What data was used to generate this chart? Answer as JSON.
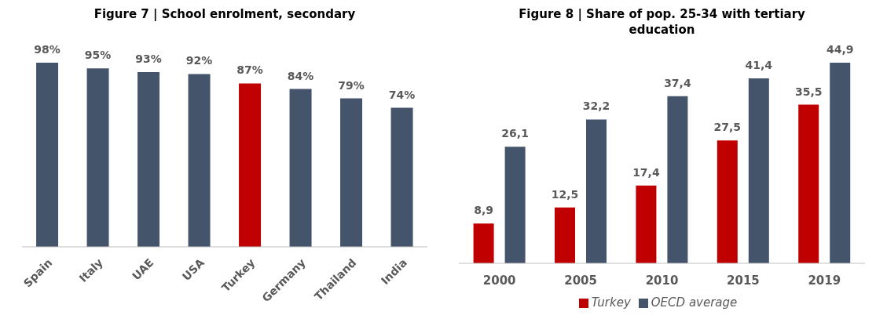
{
  "chart_data": [
    {
      "type": "bar",
      "title": "Figure 7 | School enrolment, secondary",
      "categories": [
        "Spain",
        "Italy",
        "UAE",
        "USA",
        "Turkey",
        "Germany",
        "Thailand",
        "India"
      ],
      "values": [
        98,
        95,
        93,
        92,
        87,
        84,
        79,
        74
      ],
      "colors": [
        "#44546a",
        "#44546a",
        "#44546a",
        "#44546a",
        "#c00000",
        "#44546a",
        "#44546a",
        "#44546a"
      ],
      "value_labels": [
        "98%",
        "95%",
        "93%",
        "92%",
        "87%",
        "84%",
        "79%",
        "74%"
      ],
      "legend": false
    },
    {
      "type": "bar",
      "title": "Figure 8 | Share of pop. 25-34 with tertiary education",
      "categories": [
        "2000",
        "2005",
        "2010",
        "2015",
        "2019"
      ],
      "legend": "bottom",
      "series": [
        {
          "name": "Turkey",
          "color": "#c00000",
          "values": [
            8.9,
            12.5,
            17.4,
            27.5,
            35.5
          ],
          "value_labels": [
            "8,9",
            "12,5",
            "17,4",
            "27,5",
            "35,5"
          ]
        },
        {
          "name": "OECD average",
          "color": "#44546a",
          "values": [
            26.1,
            32.2,
            37.4,
            41.4,
            44.9
          ],
          "value_labels": [
            "26,1",
            "32,2",
            "37,4",
            "41,4",
            "44,9"
          ]
        }
      ]
    }
  ]
}
